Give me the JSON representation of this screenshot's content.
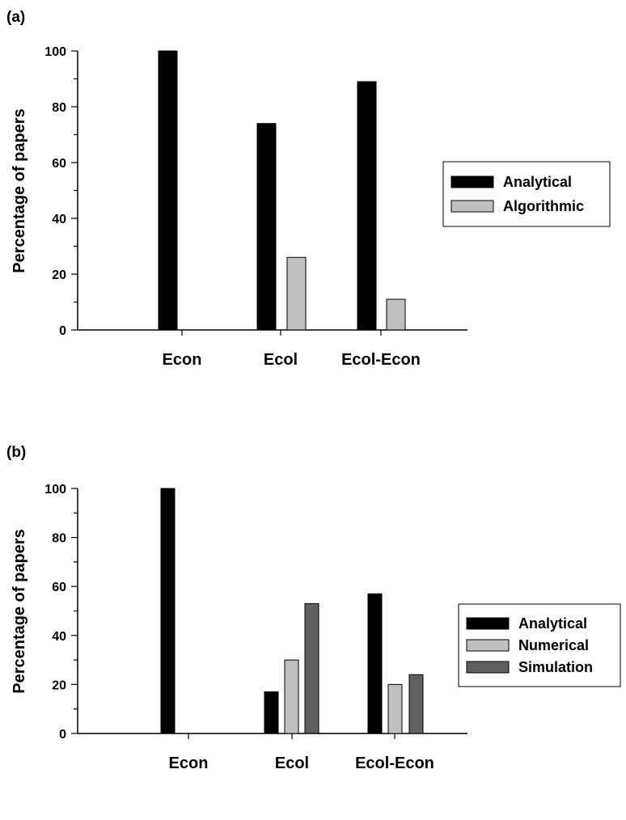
{
  "chart_data": [
    {
      "type": "bar",
      "panel_label": "(a)",
      "ylabel": "Percentage of papers",
      "xlabel": "",
      "ylim": [
        0,
        100
      ],
      "yticks": [
        "0",
        "20",
        "40",
        "60",
        "80",
        "100"
      ],
      "categories": [
        "Econ",
        "Ecol",
        "Ecol-Econ"
      ],
      "series": [
        {
          "name": "Analytical",
          "values": [
            100,
            74,
            89
          ],
          "color": "#000000"
        },
        {
          "name": "Algorithmic",
          "values": [
            0,
            26,
            11
          ],
          "color": "#c0c0c0"
        }
      ],
      "legend_position": "right"
    },
    {
      "type": "bar",
      "panel_label": "(b)",
      "ylabel": "Percentage of papers",
      "xlabel": "",
      "ylim": [
        0,
        100
      ],
      "yticks": [
        "0",
        "20",
        "40",
        "60",
        "80",
        "100"
      ],
      "categories": [
        "Econ",
        "Ecol",
        "Ecol-Econ"
      ],
      "series": [
        {
          "name": "Analytical",
          "values": [
            100,
            17,
            57
          ],
          "color": "#000000"
        },
        {
          "name": "Numerical",
          "values": [
            0,
            30,
            20
          ],
          "color": "#c0c0c0"
        },
        {
          "name": "Simulation",
          "values": [
            0,
            53,
            24
          ],
          "color": "#606060"
        }
      ],
      "legend_position": "right"
    }
  ]
}
